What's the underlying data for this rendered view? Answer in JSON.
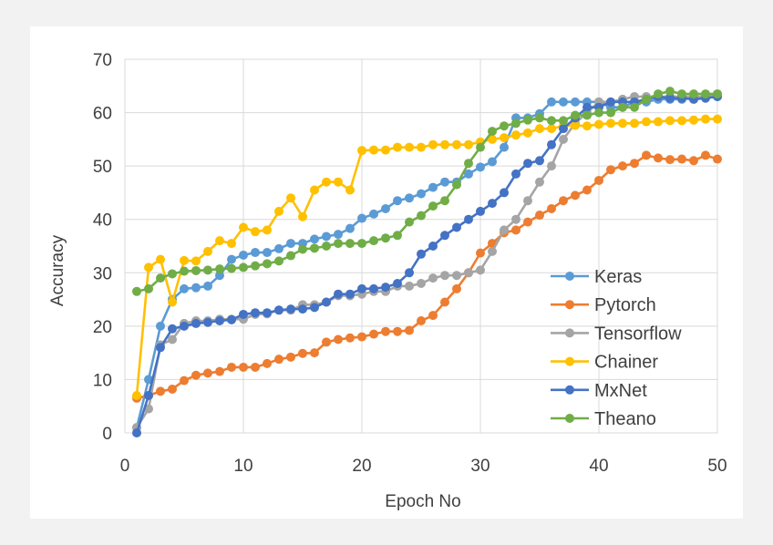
{
  "chart_data": {
    "type": "line",
    "xlabel": "Epoch No",
    "ylabel": "Accuracy",
    "xlim": [
      0,
      50
    ],
    "ylim": [
      0,
      70
    ],
    "xticks": [
      0,
      10,
      20,
      30,
      40,
      50
    ],
    "yticks": [
      0,
      10,
      20,
      30,
      40,
      50,
      60,
      70
    ],
    "grid": true,
    "legend_position": "right",
    "x": [
      1,
      2,
      3,
      4,
      5,
      6,
      7,
      8,
      9,
      10,
      11,
      12,
      13,
      14,
      15,
      16,
      17,
      18,
      19,
      20,
      21,
      22,
      23,
      24,
      25,
      26,
      27,
      28,
      29,
      30,
      31,
      32,
      33,
      34,
      35,
      36,
      37,
      38,
      39,
      40,
      41,
      42,
      43,
      44,
      45,
      46,
      47,
      48,
      49,
      50
    ],
    "series": [
      {
        "name": "Keras",
        "color": "#5b9bd5",
        "x": [
          1,
          2,
          3,
          4,
          5,
          6,
          7,
          8,
          9,
          10,
          11,
          12,
          13,
          14,
          15,
          16,
          17,
          18,
          19,
          20,
          21,
          22,
          23,
          24,
          25,
          26,
          27,
          28,
          29,
          30,
          31,
          32,
          33,
          34,
          35,
          36,
          37,
          38,
          39,
          40,
          41,
          42,
          43,
          44,
          45,
          46,
          47,
          48,
          49,
          50
        ],
        "values": [
          1,
          10,
          20,
          25,
          27,
          27.2,
          27.5,
          29.5,
          32.5,
          33.3,
          33.8,
          33.8,
          34.5,
          35.5,
          35.5,
          36.3,
          36.8,
          37.2,
          38.3,
          40.2,
          41,
          42,
          43.5,
          44,
          44.8,
          46,
          47,
          47,
          48.5,
          49.8,
          50.8,
          53.5,
          59,
          59,
          59.8,
          62,
          62,
          62,
          62,
          62,
          61,
          61,
          62,
          62,
          62.5,
          62.5,
          62.5,
          62.8,
          63,
          63
        ]
      },
      {
        "name": "Pytorch",
        "color": "#ed7d31",
        "x": [
          1,
          2,
          3,
          4,
          5,
          6,
          7,
          8,
          9,
          10,
          11,
          12,
          13,
          14,
          15,
          16,
          17,
          18,
          19,
          20,
          21,
          22,
          23,
          24,
          25,
          26,
          27,
          28,
          29,
          30,
          31,
          32,
          33,
          34,
          35,
          36,
          37,
          38,
          39,
          40,
          41,
          42,
          43,
          44,
          45,
          46,
          47,
          48,
          49,
          50
        ],
        "values": [
          6.5,
          7,
          7.8,
          8.2,
          9.8,
          10.8,
          11.2,
          11.5,
          12.3,
          12.3,
          12.3,
          13,
          13.8,
          14.2,
          14.9,
          15,
          17,
          17.5,
          17.8,
          18,
          18.5,
          19,
          19,
          19.2,
          21,
          22,
          24.5,
          27,
          30,
          33.7,
          35.5,
          37.5,
          38,
          39.5,
          40.8,
          42,
          43.5,
          44.5,
          45.5,
          47.3,
          49.3,
          50,
          50.5,
          52,
          51.5,
          51.2,
          51.3,
          51,
          52,
          51.3
        ]
      },
      {
        "name": "Tensorflow",
        "color": "#a5a5a5",
        "x": [
          1,
          2,
          3,
          4,
          5,
          6,
          7,
          8,
          9,
          10,
          11,
          12,
          13,
          14,
          15,
          16,
          17,
          18,
          19,
          20,
          21,
          22,
          23,
          24,
          25,
          26,
          27,
          28,
          29,
          30,
          31,
          32,
          33,
          34,
          35,
          36,
          37,
          38,
          39,
          40,
          41,
          42,
          43,
          44,
          45,
          46,
          47,
          48,
          49,
          50
        ],
        "values": [
          1,
          4.5,
          16.5,
          17.5,
          20.5,
          21,
          21,
          21.3,
          21.3,
          21.3,
          22.2,
          22.3,
          23,
          23,
          24,
          24,
          24.5,
          25.7,
          25.7,
          26,
          26.5,
          26.5,
          27.5,
          27.5,
          28,
          29,
          29.5,
          29.5,
          30,
          30.5,
          34,
          38,
          40,
          43.5,
          47,
          50,
          55,
          58,
          60,
          62,
          62,
          62.5,
          63,
          63,
          63,
          63,
          63,
          63,
          63,
          63.5
        ]
      },
      {
        "name": "Chainer",
        "color": "#ffc000",
        "x": [
          1,
          2,
          3,
          4,
          5,
          6,
          7,
          8,
          9,
          10,
          11,
          12,
          13,
          14,
          15,
          16,
          17,
          18,
          19,
          20,
          21,
          22,
          23,
          24,
          25,
          26,
          27,
          28,
          29,
          30,
          31,
          32,
          33,
          34,
          35,
          36,
          37,
          38,
          39,
          40,
          41,
          42,
          43,
          44,
          45,
          46,
          47,
          48,
          49,
          50
        ],
        "values": [
          7,
          31,
          32.5,
          24.5,
          32.3,
          32.2,
          34,
          36,
          35.5,
          38.5,
          37.7,
          38,
          41.5,
          44,
          40.5,
          45.5,
          47,
          47,
          45.5,
          52.9,
          53,
          53,
          53.5,
          53.5,
          53.5,
          54,
          54,
          54,
          54,
          54.5,
          55,
          55.3,
          55.8,
          56.2,
          57,
          57,
          57.5,
          57.6,
          57.5,
          57.8,
          58,
          58,
          58,
          58.3,
          58.3,
          58.5,
          58.5,
          58.6,
          58.8,
          58.8
        ]
      },
      {
        "name": "MxNet",
        "color": "#4472c4",
        "x": [
          1,
          2,
          3,
          4,
          5,
          6,
          7,
          8,
          9,
          10,
          11,
          12,
          13,
          14,
          15,
          16,
          17,
          18,
          19,
          20,
          21,
          22,
          23,
          24,
          25,
          26,
          27,
          28,
          29,
          30,
          31,
          32,
          33,
          34,
          35,
          36,
          37,
          38,
          39,
          40,
          41,
          42,
          43,
          44,
          45,
          46,
          47,
          48,
          49,
          50
        ],
        "values": [
          0,
          7,
          16,
          19.5,
          20,
          20.5,
          20.7,
          21,
          21.2,
          22.2,
          22.5,
          22.5,
          23,
          23.2,
          23.2,
          23.5,
          24.5,
          26,
          26,
          27,
          27,
          27.3,
          28,
          30,
          33.5,
          35,
          37,
          38.5,
          40,
          41.5,
          43,
          45,
          48.5,
          50.5,
          51,
          54,
          57,
          59,
          61,
          61,
          62,
          62,
          62,
          62.5,
          63,
          62.7,
          62.7,
          62.5,
          62.7,
          63
        ]
      },
      {
        "name": "Theano",
        "color": "#70ad47",
        "x": [
          1,
          2,
          3,
          4,
          5,
          6,
          7,
          8,
          9,
          10,
          11,
          12,
          13,
          14,
          15,
          16,
          17,
          18,
          19,
          20,
          21,
          22,
          23,
          24,
          25,
          26,
          27,
          28,
          29,
          30,
          31,
          32,
          33,
          34,
          35,
          36,
          37,
          38,
          39,
          40,
          41,
          42,
          43,
          44,
          45,
          46,
          47,
          48,
          49,
          50
        ],
        "values": [
          26.5,
          27,
          29,
          29.8,
          30.3,
          30.4,
          30.5,
          30.7,
          30.8,
          31,
          31.3,
          31.7,
          32.2,
          33.2,
          34.4,
          34.6,
          35,
          35.5,
          35.5,
          35.5,
          36,
          36.5,
          37,
          39.5,
          40.7,
          42.5,
          43.5,
          46.5,
          50.5,
          53.5,
          56.5,
          57.5,
          58,
          58.6,
          59,
          58.5,
          58.5,
          59.5,
          59.5,
          60,
          60,
          61,
          61,
          62.5,
          63.5,
          64,
          63.5,
          63.5,
          63.5,
          63.5
        ]
      }
    ]
  }
}
